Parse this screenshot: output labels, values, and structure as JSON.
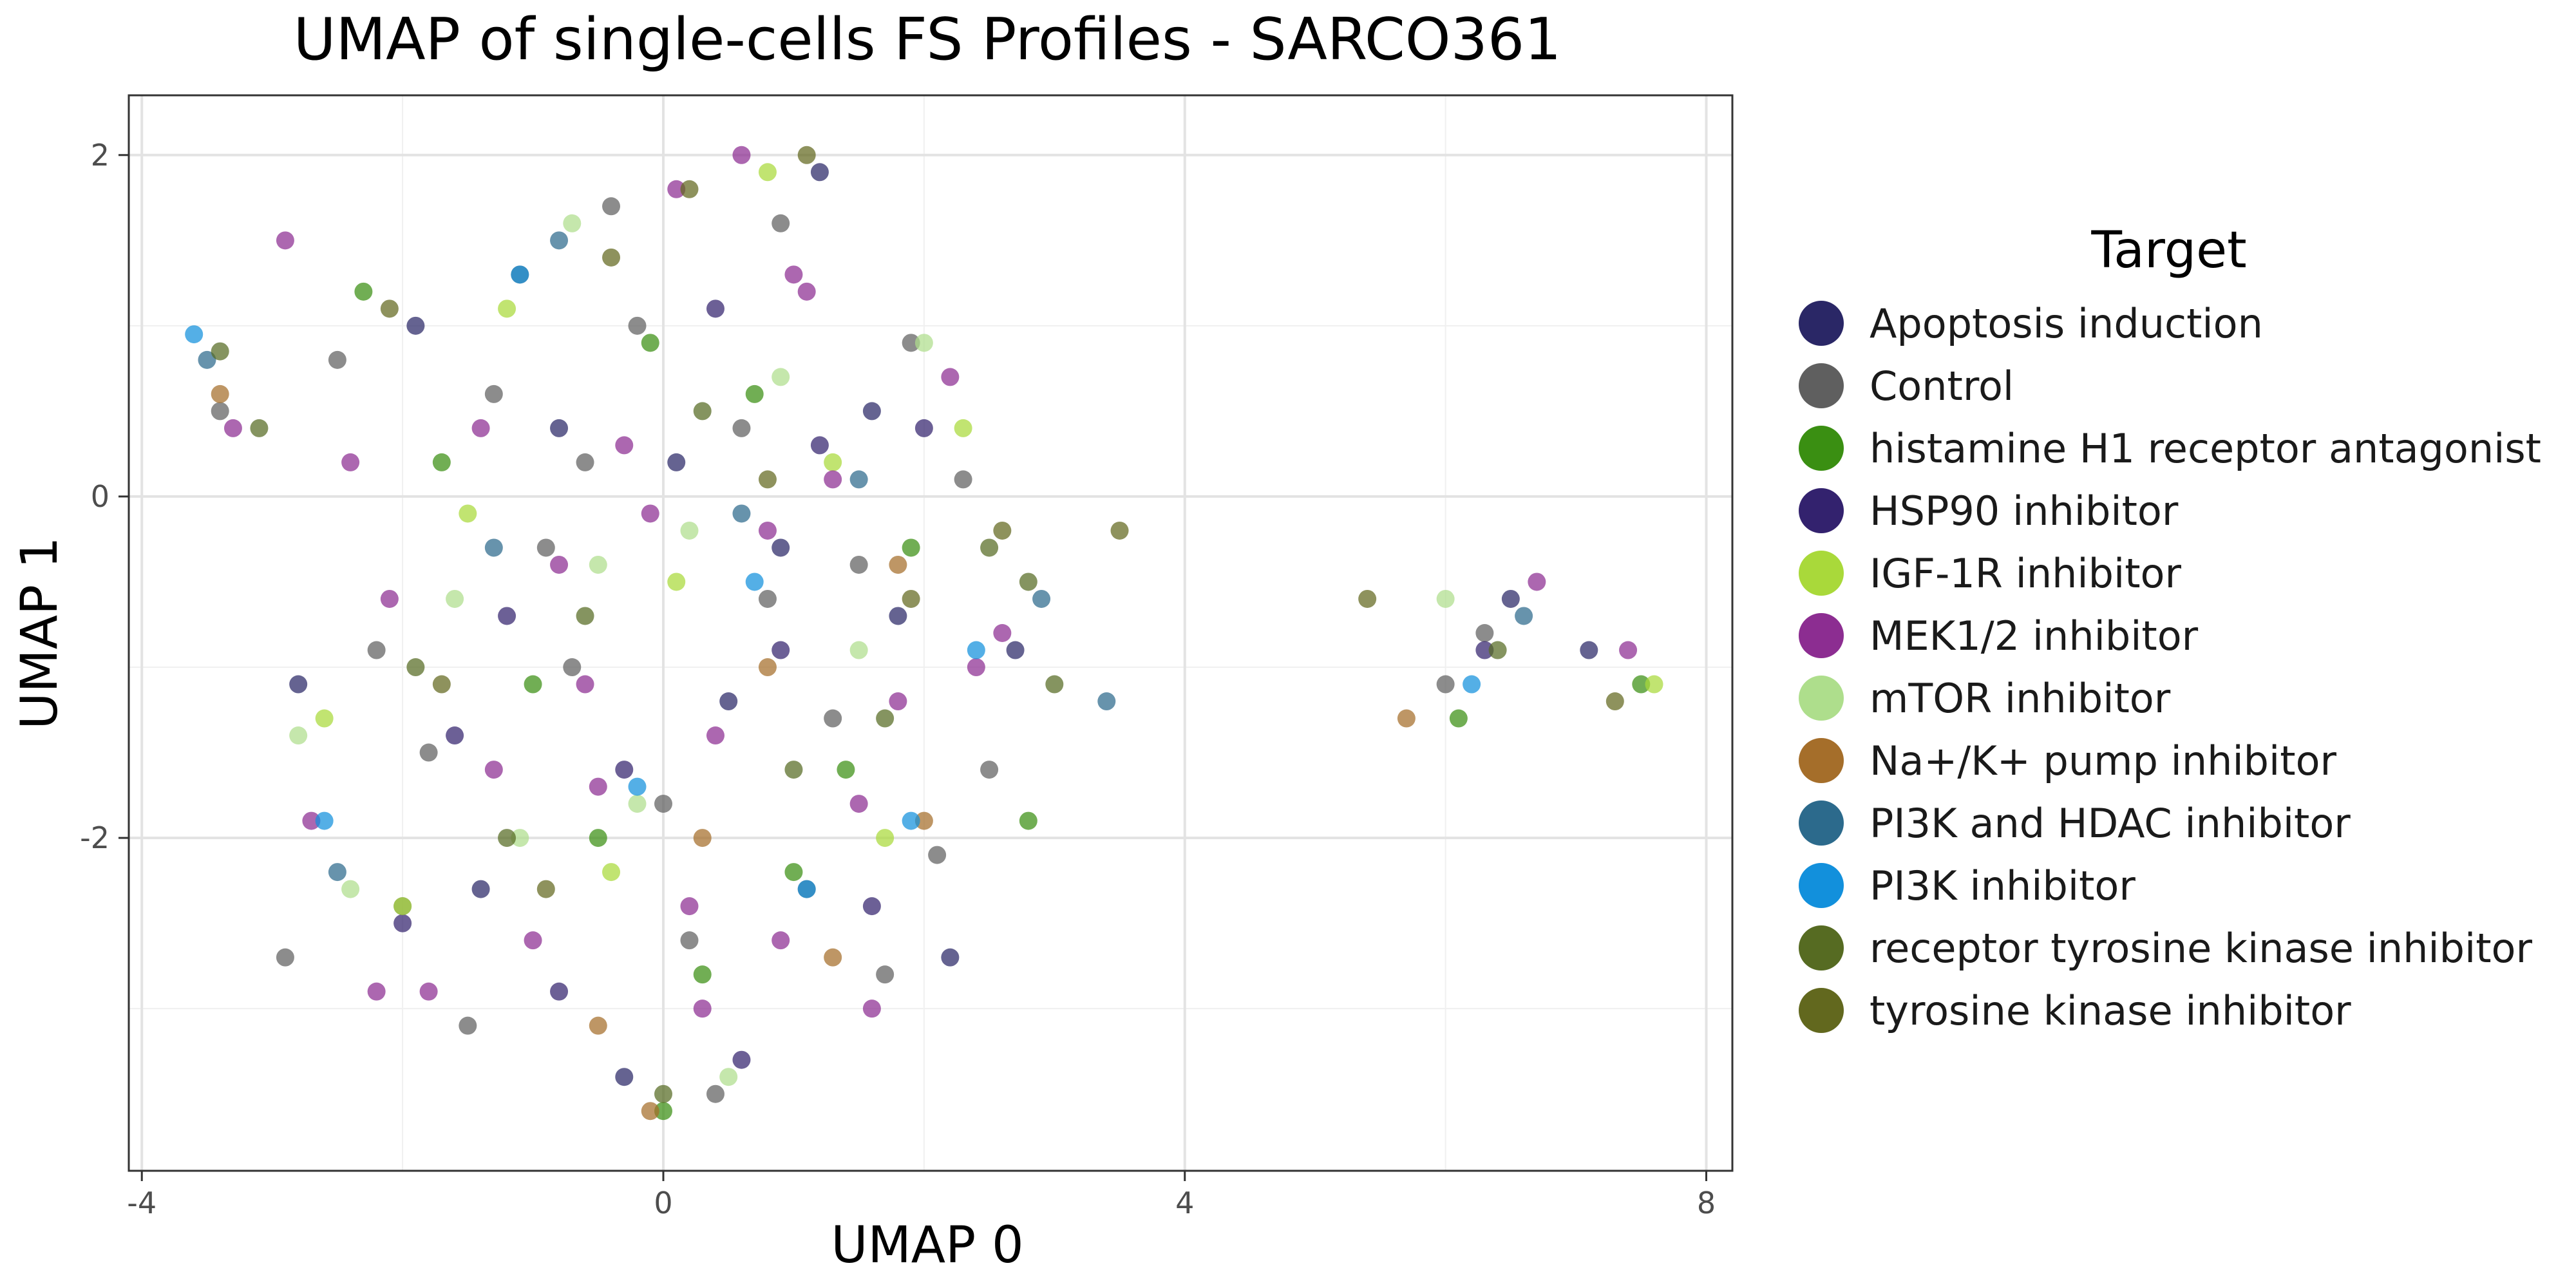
{
  "chart_data": {
    "type": "scatter",
    "title": "UMAP of single-cells FS Profiles - SARCO361",
    "xlabel": "UMAP 0",
    "ylabel": "UMAP 1",
    "xlim": [
      -4.1,
      8.2
    ],
    "ylim": [
      -3.95,
      2.35
    ],
    "x_ticks": [
      "-4",
      "0",
      "4",
      "8"
    ],
    "x_tick_values": [
      -4,
      0,
      4,
      8
    ],
    "y_ticks": [
      "2",
      "0",
      "-2"
    ],
    "y_tick_values": [
      2,
      0,
      -2
    ],
    "x_minor_gridlines": [
      -2,
      2,
      6
    ],
    "y_minor_gridlines": [
      1,
      -1,
      -3
    ],
    "grid": true,
    "legend_title": "Target",
    "legend_position": "right",
    "point_alpha": 0.72,
    "series": [
      {
        "name": "Apoptosis induction",
        "color": "#2a2766",
        "x": [
          -0.8,
          0.5,
          1.2,
          1.8,
          -1.4,
          6.5,
          7.1,
          -2.8,
          0.1,
          2.2,
          -0.3,
          1.6,
          0.9,
          2.7,
          -1.9
        ],
        "y": [
          0.4,
          -1.2,
          1.9,
          -0.7,
          -2.3,
          -0.6,
          -0.9,
          -1.1,
          0.2,
          -2.7,
          -3.4,
          0.5,
          -0.3,
          -0.9,
          1.0
        ]
      },
      {
        "name": "Control",
        "color": "#5f5f5f",
        "x": [
          -2.5,
          -1.8,
          -1.1,
          -0.6,
          0.2,
          0.9,
          1.5,
          2.1,
          -2.2,
          -0.2,
          0.6,
          1.3,
          -1.5,
          -0.9,
          0.4,
          1.9,
          2.5,
          -2.9,
          -0.4,
          0.8,
          1.1,
          -1.3,
          0.0,
          2.3,
          -3.4,
          6.0,
          6.3,
          -2.0,
          1.7,
          -0.7
        ],
        "y": [
          0.8,
          -1.5,
          1.3,
          0.2,
          -2.6,
          1.6,
          -0.4,
          -2.1,
          -0.9,
          1.0,
          0.4,
          -1.3,
          -3.1,
          -0.3,
          -3.5,
          0.9,
          -1.6,
          -2.7,
          1.7,
          -0.6,
          -2.3,
          0.6,
          -1.8,
          0.1,
          0.5,
          -1.1,
          -0.8,
          -2.4,
          -2.8,
          -1.0
        ]
      },
      {
        "name": "histamine H1 receptor antagonist",
        "color": "#3a8f12",
        "x": [
          -2.3,
          -0.5,
          0.7,
          1.4,
          -1.0,
          2.8,
          0.3,
          -1.7,
          1.9,
          6.1,
          7.5,
          -0.1,
          0.0,
          1.0
        ],
        "y": [
          1.2,
          -2.0,
          0.6,
          -1.6,
          -1.1,
          -1.9,
          -2.8,
          0.2,
          -0.3,
          -1.3,
          -1.1,
          0.9,
          -3.6,
          -2.2
        ]
      },
      {
        "name": "HSP90 inhibitor",
        "color": "#33226e",
        "x": [
          -1.2,
          0.4,
          1.6,
          -0.3,
          2.0,
          -2.0,
          0.9,
          6.3,
          -0.8,
          1.2,
          -1.6,
          0.6
        ],
        "y": [
          -0.7,
          1.1,
          -2.4,
          -1.6,
          0.4,
          -2.5,
          -0.9,
          -0.9,
          -2.9,
          0.3,
          -1.4,
          -3.3
        ]
      },
      {
        "name": "IGF-1R inhibitor",
        "color": "#a9d93a",
        "x": [
          -2.6,
          -1.2,
          0.1,
          1.3,
          -0.4,
          2.3,
          -2.0,
          0.8,
          1.7,
          7.6,
          -1.5
        ],
        "y": [
          -1.3,
          1.1,
          -0.5,
          0.2,
          -2.2,
          0.4,
          -2.4,
          1.9,
          -2.0,
          -1.1,
          -0.1
        ]
      },
      {
        "name": "MEK1/2 inhibitor",
        "color": "#8c2d91",
        "x": [
          -2.1,
          -1.4,
          -0.6,
          0.1,
          0.8,
          1.5,
          2.2,
          -2.7,
          -1.0,
          0.4,
          1.1,
          -0.3,
          0.6,
          1.8,
          -1.8,
          -0.8,
          0.3,
          1.3,
          2.6,
          -2.4,
          -2.2,
          -0.5,
          0.9,
          1.6,
          -1.3,
          -3.3,
          6.7,
          7.4,
          -0.1,
          2.4,
          -2.9,
          0.2,
          1.0
        ],
        "y": [
          -0.6,
          0.4,
          -1.1,
          1.8,
          -0.2,
          -1.8,
          0.7,
          -1.9,
          -2.6,
          -1.4,
          1.2,
          0.3,
          2.0,
          -1.2,
          -2.9,
          -0.4,
          -3.0,
          0.1,
          -0.8,
          0.2,
          -2.9,
          -1.7,
          -2.6,
          -3.0,
          -1.6,
          0.4,
          -0.5,
          -0.9,
          -0.1,
          -1.0,
          1.5,
          -2.4,
          1.3
        ]
      },
      {
        "name": "mTOR inhibitor",
        "color": "#aede8c",
        "x": [
          -2.4,
          -1.6,
          -0.7,
          0.2,
          0.9,
          -0.2,
          1.5,
          -1.1,
          0.5,
          2.0,
          -2.8,
          6.0,
          -0.5
        ],
        "y": [
          -2.3,
          -0.6,
          1.6,
          -0.2,
          0.7,
          -1.8,
          -0.9,
          -2.0,
          -3.4,
          0.9,
          -1.4,
          -0.6,
          -0.4
        ]
      },
      {
        "name": "Na+/K+ pump inhibitor",
        "color": "#a56e2a",
        "x": [
          -0.5,
          0.8,
          1.3,
          2.0,
          -0.1,
          1.8,
          -3.4,
          5.7,
          0.3
        ],
        "y": [
          -3.1,
          -1.0,
          -2.7,
          -1.9,
          -3.6,
          -0.4,
          0.6,
          -1.3,
          -2.0
        ]
      },
      {
        "name": "PI3K and HDAC inhibitor",
        "color": "#2c6a8c",
        "x": [
          -3.5,
          -0.8,
          0.6,
          1.5,
          -2.5,
          3.4,
          6.6,
          2.9,
          -1.3
        ],
        "y": [
          0.8,
          1.5,
          -0.1,
          0.1,
          -2.2,
          -1.2,
          -0.7,
          -0.6,
          -0.3
        ]
      },
      {
        "name": "PI3K inhibitor",
        "color": "#1290dc",
        "x": [
          -3.6,
          -1.1,
          0.7,
          1.9,
          -0.2,
          2.4,
          -2.6,
          6.2,
          1.1
        ],
        "y": [
          0.95,
          1.3,
          -0.5,
          -1.9,
          -1.7,
          -0.9,
          -1.9,
          -1.1,
          -2.3
        ]
      },
      {
        "name": "receptor tyrosine kinase inhibitor",
        "color": "#566b22",
        "x": [
          -3.1,
          -1.2,
          0.3,
          1.7,
          -0.6,
          2.8,
          1.0,
          6.4,
          -1.9,
          0.0,
          -3.4,
          2.5,
          3.0
        ],
        "y": [
          0.4,
          -2.0,
          0.5,
          -1.3,
          -0.7,
          -0.5,
          -1.6,
          -0.9,
          -1.0,
          -3.5,
          0.85,
          -0.3,
          -1.1
        ]
      },
      {
        "name": "tyrosine kinase inhibitor",
        "color": "#62681e",
        "x": [
          -1.7,
          -0.4,
          0.8,
          1.9,
          0.2,
          2.6,
          3.5,
          1.1,
          -0.9,
          5.4,
          7.3,
          -2.1
        ],
        "y": [
          -1.1,
          1.4,
          0.1,
          -0.6,
          1.8,
          -0.2,
          -0.2,
          2.0,
          -2.3,
          -0.6,
          -1.2,
          1.1
        ]
      }
    ]
  }
}
